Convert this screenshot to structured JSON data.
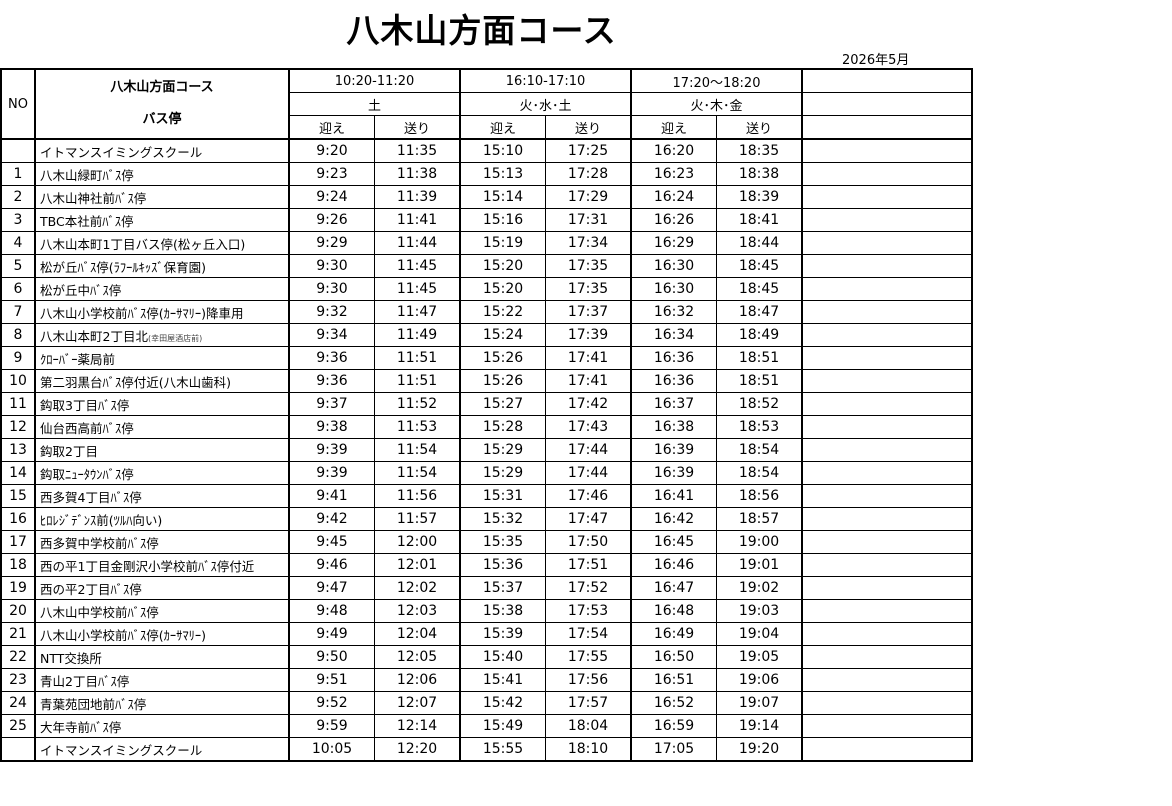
{
  "title": "八木山方面コース",
  "month": "2026年5月",
  "header": {
    "no": "NO",
    "course": "八木山方面コース",
    "bus_stop": "バス停",
    "groups": [
      {
        "time": "10:20-11:20",
        "days": "土"
      },
      {
        "time": "16:10-17:10",
        "days": "火･水･土"
      },
      {
        "time": "17:20～18:20",
        "days": "火･木･金"
      }
    ],
    "pickup": "迎え",
    "dropoff": "送り"
  },
  "rows": [
    {
      "no": "",
      "stop": "イトマンスイミングスクール",
      "times": [
        "9:20",
        "11:35",
        "15:10",
        "17:25",
        "16:20",
        "18:35"
      ]
    },
    {
      "no": "1",
      "stop": "八木山緑町ﾊﾞｽ停",
      "times": [
        "9:23",
        "11:38",
        "15:13",
        "17:28",
        "16:23",
        "18:38"
      ]
    },
    {
      "no": "2",
      "stop": "八木山神社前ﾊﾞｽ停",
      "times": [
        "9:24",
        "11:39",
        "15:14",
        "17:29",
        "16:24",
        "18:39"
      ]
    },
    {
      "no": "3",
      "stop": "TBC本社前ﾊﾞｽ停",
      "times": [
        "9:26",
        "11:41",
        "15:16",
        "17:31",
        "16:26",
        "18:41"
      ]
    },
    {
      "no": "4",
      "stop": "八木山本町1丁目バス停(松ヶ丘入口)",
      "times": [
        "9:29",
        "11:44",
        "15:19",
        "17:34",
        "16:29",
        "18:44"
      ]
    },
    {
      "no": "5",
      "stop": "松が丘ﾊﾞｽ停(ﾗﾌｰﾙｷｯｽﾞ保育園)",
      "times": [
        "9:30",
        "11:45",
        "15:20",
        "17:35",
        "16:30",
        "18:45"
      ]
    },
    {
      "no": "6",
      "stop": "松が丘中ﾊﾞｽ停",
      "times": [
        "9:30",
        "11:45",
        "15:20",
        "17:35",
        "16:30",
        "18:45"
      ]
    },
    {
      "no": "7",
      "stop": "八木山小学校前ﾊﾞｽ停(ｶｰｻﾏﾘｰ)降車用",
      "times": [
        "9:32",
        "11:47",
        "15:22",
        "17:37",
        "16:32",
        "18:47"
      ]
    },
    {
      "no": "8",
      "stop": "八木山本町2丁目北",
      "note": "(幸田屋酒店前)",
      "times": [
        "9:34",
        "11:49",
        "15:24",
        "17:39",
        "16:34",
        "18:49"
      ]
    },
    {
      "no": "9",
      "stop": "ｸﾛｰﾊﾞｰ薬局前",
      "times": [
        "9:36",
        "11:51",
        "15:26",
        "17:41",
        "16:36",
        "18:51"
      ]
    },
    {
      "no": "10",
      "stop": "第二羽黒台ﾊﾞｽ停付近(八木山歯科)",
      "times": [
        "9:36",
        "11:51",
        "15:26",
        "17:41",
        "16:36",
        "18:51"
      ]
    },
    {
      "no": "11",
      "stop": "鈎取3丁目ﾊﾞｽ停",
      "times": [
        "9:37",
        "11:52",
        "15:27",
        "17:42",
        "16:37",
        "18:52"
      ]
    },
    {
      "no": "12",
      "stop": "仙台西高前ﾊﾞｽ停",
      "times": [
        "9:38",
        "11:53",
        "15:28",
        "17:43",
        "16:38",
        "18:53"
      ]
    },
    {
      "no": "13",
      "stop": "鈎取2丁目",
      "times": [
        "9:39",
        "11:54",
        "15:29",
        "17:44",
        "16:39",
        "18:54"
      ]
    },
    {
      "no": "14",
      "stop": "鈎取ﾆｭｰﾀｳﾝﾊﾞｽ停",
      "times": [
        "9:39",
        "11:54",
        "15:29",
        "17:44",
        "16:39",
        "18:54"
      ]
    },
    {
      "no": "15",
      "stop": "西多賀4丁目ﾊﾞｽ停",
      "times": [
        "9:41",
        "11:56",
        "15:31",
        "17:46",
        "16:41",
        "18:56"
      ]
    },
    {
      "no": "16",
      "stop": "ﾋﾛﾚｼﾞﾃﾞﾝｽ前(ﾂﾙﾊ向い)",
      "times": [
        "9:42",
        "11:57",
        "15:32",
        "17:47",
        "16:42",
        "18:57"
      ]
    },
    {
      "no": "17",
      "stop": "西多賀中学校前ﾊﾞｽ停",
      "times": [
        "9:45",
        "12:00",
        "15:35",
        "17:50",
        "16:45",
        "19:00"
      ]
    },
    {
      "no": "18",
      "stop": "西の平1丁目金剛沢小学校前ﾊﾞｽ停付近",
      "times": [
        "9:46",
        "12:01",
        "15:36",
        "17:51",
        "16:46",
        "19:01"
      ]
    },
    {
      "no": "19",
      "stop": "西の平2丁目ﾊﾞｽ停",
      "times": [
        "9:47",
        "12:02",
        "15:37",
        "17:52",
        "16:47",
        "19:02"
      ]
    },
    {
      "no": "20",
      "stop": "八木山中学校前ﾊﾞｽ停",
      "times": [
        "9:48",
        "12:03",
        "15:38",
        "17:53",
        "16:48",
        "19:03"
      ]
    },
    {
      "no": "21",
      "stop": "八木山小学校前ﾊﾞｽ停(ｶｰｻﾏﾘｰ)",
      "times": [
        "9:49",
        "12:04",
        "15:39",
        "17:54",
        "16:49",
        "19:04"
      ]
    },
    {
      "no": "22",
      "stop": "NTT交換所",
      "times": [
        "9:50",
        "12:05",
        "15:40",
        "17:55",
        "16:50",
        "19:05"
      ]
    },
    {
      "no": "23",
      "stop": "青山2丁目ﾊﾞｽ停",
      "times": [
        "9:51",
        "12:06",
        "15:41",
        "17:56",
        "16:51",
        "19:06"
      ]
    },
    {
      "no": "24",
      "stop": "青葉苑団地前ﾊﾞｽ停",
      "times": [
        "9:52",
        "12:07",
        "15:42",
        "17:57",
        "16:52",
        "19:07"
      ]
    },
    {
      "no": "25",
      "stop": "大年寺前ﾊﾞｽ停",
      "times": [
        "9:59",
        "12:14",
        "15:49",
        "18:04",
        "16:59",
        "19:14"
      ]
    },
    {
      "no": "",
      "stop": "イトマンスイミングスクール",
      "times": [
        "10:05",
        "12:20",
        "15:55",
        "18:10",
        "17:05",
        "19:20"
      ]
    }
  ]
}
